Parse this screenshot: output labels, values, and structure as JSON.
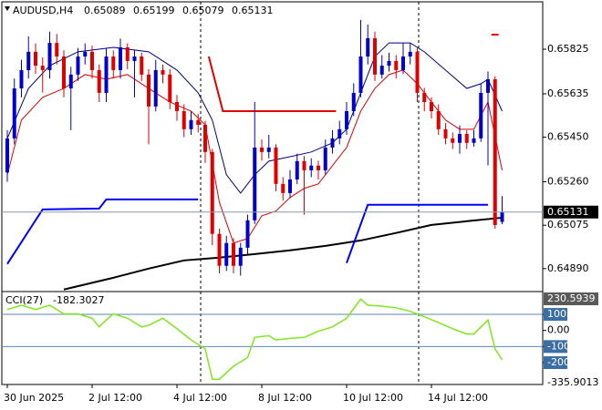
{
  "chart_data": [
    {
      "type": "candlestick",
      "title": "AUDUSD,H4",
      "open": [
        0.653,
        0.65445,
        0.65658,
        0.65736,
        0.65814,
        0.65755,
        0.65736,
        0.65852,
        0.65794,
        0.65658,
        0.65717,
        0.65794,
        0.65814,
        0.65736,
        0.65639,
        0.65794,
        0.65736,
        0.65833,
        0.65775,
        0.65794,
        0.65717,
        0.65581,
        0.65736,
        0.65717,
        0.656,
        0.65561,
        0.65484,
        0.65523,
        0.65503,
        0.65387,
        0.65038,
        0.64902,
        0.64999,
        0.64902,
        0.64979,
        0.65096,
        0.65406,
        0.65387,
        0.65406,
        0.65251,
        0.65212,
        0.6527,
        0.65348,
        0.65309,
        0.65329,
        0.65309,
        0.65406,
        0.65445,
        0.65484,
        0.65561,
        0.65639,
        0.65794,
        0.65872,
        0.65717,
        0.65755,
        0.65775,
        0.65736,
        0.65794,
        0.65814,
        0.65639,
        0.656,
        0.65561,
        0.65484,
        0.65445,
        0.65426,
        0.65464,
        0.65426,
        0.65445,
        0.65639,
        0.65697,
        0.65089
      ],
      "high": [
        0.6548,
        0.657,
        0.6578,
        0.6588,
        0.6585,
        0.6579,
        0.659,
        0.6589,
        0.6582,
        0.6575,
        0.6583,
        0.6585,
        0.6584,
        0.6576,
        0.6583,
        0.6582,
        0.6587,
        0.6585,
        0.6582,
        0.6581,
        0.6574,
        0.6578,
        0.6576,
        0.6574,
        0.6563,
        0.6559,
        0.6556,
        0.6555,
        0.6552,
        0.654,
        0.6506,
        0.6503,
        0.6502,
        0.65,
        0.6512,
        0.656,
        0.6544,
        0.6546,
        0.6542,
        0.6528,
        0.6531,
        0.6538,
        0.6537,
        0.6536,
        0.6535,
        0.6544,
        0.6548,
        0.6552,
        0.656,
        0.6568,
        0.6595,
        0.6593,
        0.659,
        0.658,
        0.6581,
        0.658,
        0.6585,
        0.6585,
        0.6583,
        0.6566,
        0.6562,
        0.6559,
        0.6551,
        0.6547,
        0.655,
        0.6548,
        0.6548,
        0.6568,
        0.6573,
        0.6571,
        0.65199
      ],
      "low": [
        0.6526,
        0.6542,
        0.6562,
        0.657,
        0.6572,
        0.6564,
        0.657,
        0.6576,
        0.6562,
        0.6548,
        0.6569,
        0.6576,
        0.657,
        0.656,
        0.656,
        0.657,
        0.657,
        0.6574,
        0.6562,
        0.6569,
        0.6542,
        0.6556,
        0.6568,
        0.6557,
        0.6552,
        0.6545,
        0.6546,
        0.6547,
        0.6534,
        0.6499,
        0.6487,
        0.6488,
        0.6487,
        0.6486,
        0.6495,
        0.6508,
        0.6535,
        0.6536,
        0.6522,
        0.6518,
        0.6519,
        0.6525,
        0.6512,
        0.6528,
        0.6527,
        0.6529,
        0.6538,
        0.6542,
        0.6546,
        0.6554,
        0.6562,
        0.6576,
        0.6569,
        0.657,
        0.6573,
        0.657,
        0.6572,
        0.6576,
        0.656,
        0.6556,
        0.6553,
        0.6546,
        0.6542,
        0.654,
        0.6538,
        0.654,
        0.6541,
        0.6543,
        0.6533,
        0.6506,
        0.65079
      ],
      "close": [
        0.65445,
        0.65658,
        0.65736,
        0.65814,
        0.65755,
        0.65736,
        0.65852,
        0.65794,
        0.65658,
        0.65717,
        0.65794,
        0.65814,
        0.65736,
        0.65639,
        0.65794,
        0.65736,
        0.65833,
        0.65775,
        0.65794,
        0.65717,
        0.65581,
        0.65736,
        0.65717,
        0.656,
        0.65561,
        0.65484,
        0.65523,
        0.65503,
        0.65387,
        0.65038,
        0.64902,
        0.64999,
        0.64902,
        0.64979,
        0.65096,
        0.65406,
        0.65387,
        0.65406,
        0.65251,
        0.65212,
        0.6527,
        0.65348,
        0.65309,
        0.65329,
        0.65309,
        0.65406,
        0.65445,
        0.65484,
        0.65561,
        0.65639,
        0.65794,
        0.65872,
        0.65717,
        0.65755,
        0.65775,
        0.65736,
        0.65794,
        0.65814,
        0.65639,
        0.656,
        0.65561,
        0.65484,
        0.65445,
        0.65426,
        0.65464,
        0.65426,
        0.65445,
        0.65639,
        0.65697,
        0.65076,
        0.65131
      ],
      "up_color": "#0000cd",
      "down_color": "#e00000",
      "series": [
        {
          "color": "#000000",
          "width": 2,
          "x": [
            8,
            15,
            20,
            25,
            30,
            35,
            40,
            45,
            50,
            55,
            60,
            65,
            70
          ],
          "values": [
            0.64801,
            0.64851,
            0.6489,
            0.64925,
            0.64937,
            0.64952,
            0.64968,
            0.64987,
            0.6501,
            0.65042,
            0.65076,
            0.65092,
            0.65107
          ]
        },
        {
          "color": "#000080",
          "width": 1,
          "x": [
            0,
            3,
            6,
            10,
            15,
            20,
            24,
            27,
            29,
            31,
            33,
            35,
            37,
            40,
            43,
            46,
            48,
            50,
            52,
            54,
            57,
            59,
            62,
            65,
            67,
            68,
            70
          ],
          "values": [
            0.65445,
            0.65658,
            0.65755,
            0.65814,
            0.65833,
            0.65814,
            0.65736,
            0.65639,
            0.65523,
            0.6529,
            0.65212,
            0.6529,
            0.65348,
            0.65367,
            0.65387,
            0.65426,
            0.65484,
            0.65639,
            0.65794,
            0.65852,
            0.65852,
            0.65814,
            0.65736,
            0.65658,
            0.65678,
            0.65697,
            0.65561
          ]
        },
        {
          "color": "#e00000",
          "width": 1,
          "x": [
            0,
            2,
            5,
            8,
            11,
            14,
            17,
            20,
            23,
            26,
            28,
            30,
            32,
            34,
            36,
            38,
            40,
            42,
            44,
            46,
            48,
            50,
            52,
            54,
            56,
            58,
            60,
            62,
            64,
            66,
            68,
            70
          ],
          "values": [
            0.6529,
            0.65523,
            0.6562,
            0.65658,
            0.65717,
            0.65697,
            0.65717,
            0.65658,
            0.656,
            0.65561,
            0.65503,
            0.65173,
            0.64999,
            0.65018,
            0.65115,
            0.65135,
            0.65193,
            0.65232,
            0.65251,
            0.65329,
            0.65406,
            0.65561,
            0.65658,
            0.65717,
            0.65736,
            0.65678,
            0.656,
            0.65523,
            0.65484,
            0.65484,
            0.656,
            0.65309
          ]
        },
        {
          "color": "#0000ff",
          "width": 2,
          "x": [
            0,
            4,
            5,
            13,
            14,
            27,
            28,
            48,
            51,
            68
          ],
          "values": [
            0.6491,
            0.65096,
            0.65142,
            0.65146,
            0.65185,
            0.65185,
            null,
            0.64914,
            0.65162,
            0.65162
          ]
        },
        {
          "color": "#e00000",
          "width": 2,
          "x": [
            28.5,
            30.5,
            46.5,
            47,
            68.5,
            69.5
          ],
          "values": [
            0.65794,
            0.65561,
            0.65561,
            null,
            0.65887,
            0.65887
          ]
        }
      ],
      "ylim": [
        0.648,
        0.66027
      ],
      "yticks": [
        0.65825,
        0.65635,
        {
          "value": 0.6545,
          "label": "0.65450"
        },
        {
          "value": 0.6526,
          "label": "0.65260"
        },
        0.65075,
        {
          "value": 0.6489,
          "label": "0.64890"
        }
      ],
      "xticks": [
        {
          "value": 0,
          "label": "30 Jun 2025"
        },
        {
          "value": 12,
          "label": "2 Jul 12:00"
        },
        {
          "value": 24,
          "label": "4 Jul 12:00"
        },
        {
          "value": 36,
          "label": "8 Jul 12:00"
        },
        {
          "value": 48,
          "label": "10 Jul 12:00"
        },
        {
          "value": 60,
          "label": "14 Jul 12:00"
        }
      ]
    },
    {
      "type": "line",
      "title": "CCI(27)",
      "color": "#7fe81e",
      "x": [
        0,
        2,
        4,
        6,
        8,
        10,
        12,
        13,
        14,
        15,
        17,
        19,
        20,
        22,
        24,
        26,
        28,
        29,
        30,
        32,
        34,
        35,
        37,
        38,
        40,
        42,
        44,
        46,
        48,
        50,
        51,
        53,
        55,
        57,
        59,
        61,
        63,
        65,
        66,
        67,
        68,
        69,
        70
      ],
      "values": [
        130,
        157,
        130,
        157,
        103,
        103,
        76,
        22,
        65,
        103,
        76,
        22,
        32,
        76,
        11,
        -59,
        -114,
        -303,
        -303,
        -222,
        -168,
        -43,
        -32,
        -59,
        -49,
        -43,
        -5,
        22,
        76,
        195,
        157,
        151,
        141,
        119,
        86,
        49,
        11,
        -22,
        -22,
        22,
        65,
        -114,
        -182.3027
      ],
      "levels": [
        100,
        -100
      ],
      "ylim": [
        -335.9013,
        230.5939
      ],
      "yticks": [
        100,
        {
          "value": 0,
          "label": "0.00"
        },
        -100,
        -200
      ]
    }
  ]
}
